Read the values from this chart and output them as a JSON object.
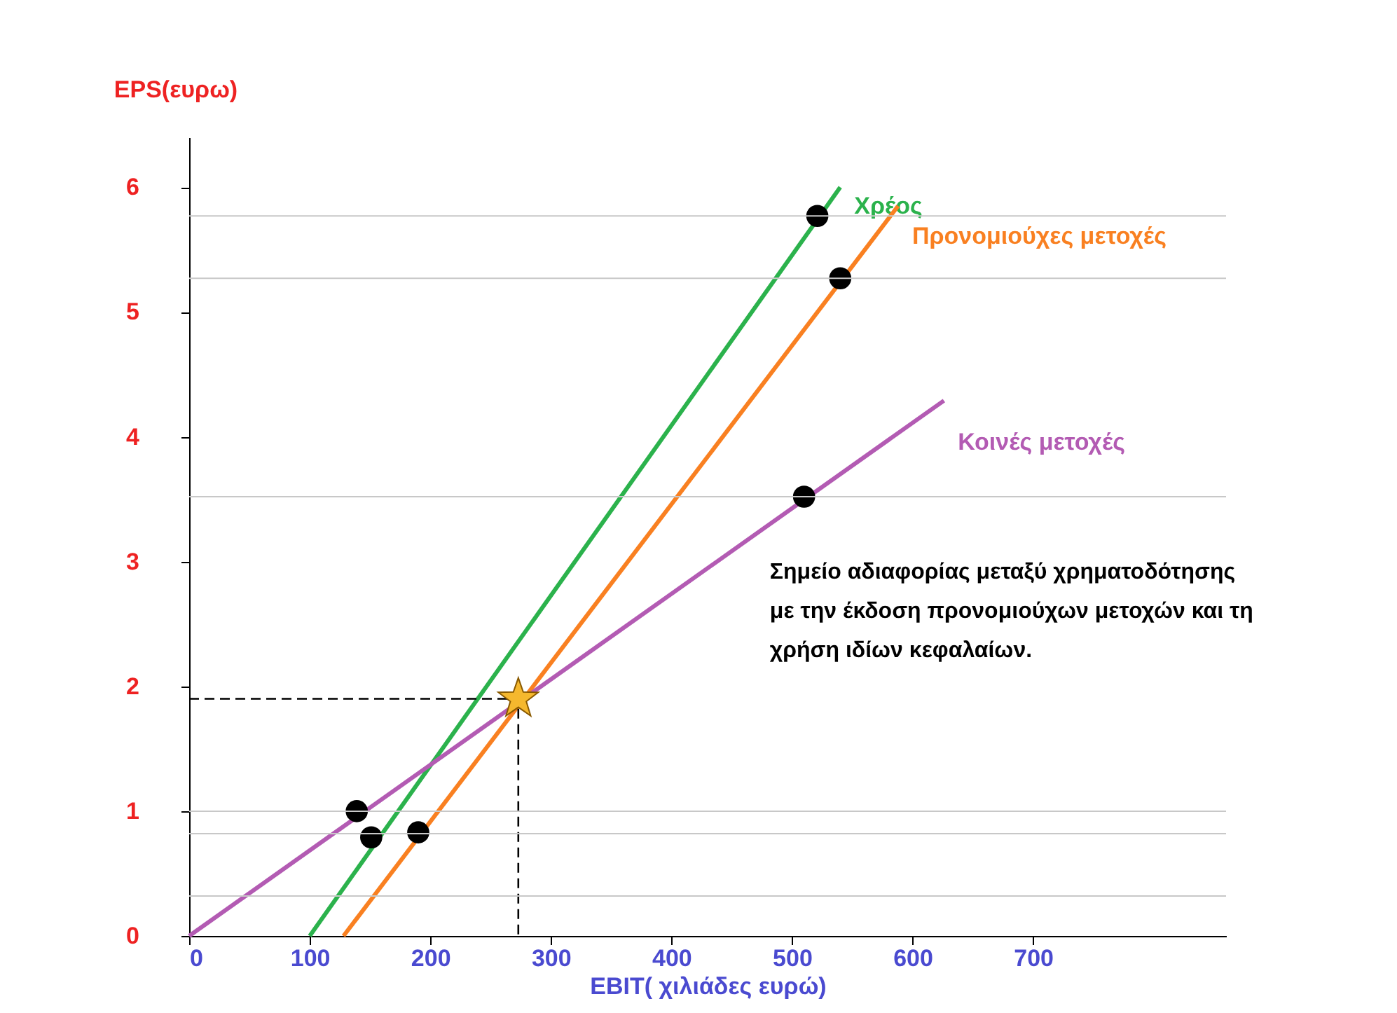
{
  "chart_data": {
    "type": "line",
    "xlabel": "EBIT( χιλιάδες ευρώ)",
    "ylabel": "EPS(ευρω)",
    "xlim": [
      0,
      860
    ],
    "ylim": [
      0,
      6.4
    ],
    "xticks": [
      0,
      100,
      200,
      300,
      400,
      500,
      600,
      700
    ],
    "yticks": [
      0,
      1,
      2,
      3,
      4,
      5,
      6
    ],
    "grid": false,
    "series": [
      {
        "name": "Χρέος",
        "color": "#2bb24c",
        "line_style": "solid",
        "marker": "none",
        "x": [
          100,
          540
        ],
        "values": [
          0,
          6
        ]
      },
      {
        "name": "Προνομιούχες μετοχές",
        "color": "#f98021",
        "line_style": "solid",
        "marker": "none",
        "x": [
          128,
          588
        ],
        "values": [
          0,
          5.85
        ]
      },
      {
        "name": "Κοινές μετοχές",
        "color": "#b35bb3",
        "line_style": "solid",
        "marker": "none",
        "x": [
          0,
          626
        ],
        "values": [
          0,
          4.29
        ]
      },
      {
        "color": "#000000",
        "type": "line",
        "line_style": "dashed",
        "marker": "none",
        "x": [
          0,
          273,
          273
        ],
        "values": [
          1.9,
          1.9,
          0
        ]
      },
      {
        "color": "#000000",
        "type": "scatter",
        "marker": "circle",
        "x": [
          139,
          151,
          190,
          510,
          521,
          540
        ],
        "values": [
          1.0,
          0.79,
          0.83,
          3.52,
          5.77,
          5.27
        ]
      },
      {
        "color": "#f5b82e",
        "type": "scatter",
        "marker": "star",
        "x": [
          273
        ],
        "values": [
          1.9
        ]
      }
    ],
    "ref_lines": [
      {
        "axis": "y",
        "value": 5.77,
        "color": "#c8c8c8"
      },
      {
        "axis": "y",
        "value": 5.27,
        "color": "#c8c8c8"
      },
      {
        "axis": "y",
        "value": 3.52,
        "color": "#c8c8c8"
      },
      {
        "axis": "y",
        "value": 1.0,
        "color": "#c8c8c8"
      },
      {
        "axis": "y",
        "value": 0.82,
        "color": "#c8c8c8"
      },
      {
        "axis": "y",
        "value": 0.32,
        "color": "#c8c8c8"
      }
    ],
    "annotations": [
      "Σημείο αδιαφορίας μεταξύ χρηματοδότησης\nμε την έκδοση προνομιούχων μετοχών και τη\nχρήση ιδίων κεφαλαίων."
    ]
  }
}
